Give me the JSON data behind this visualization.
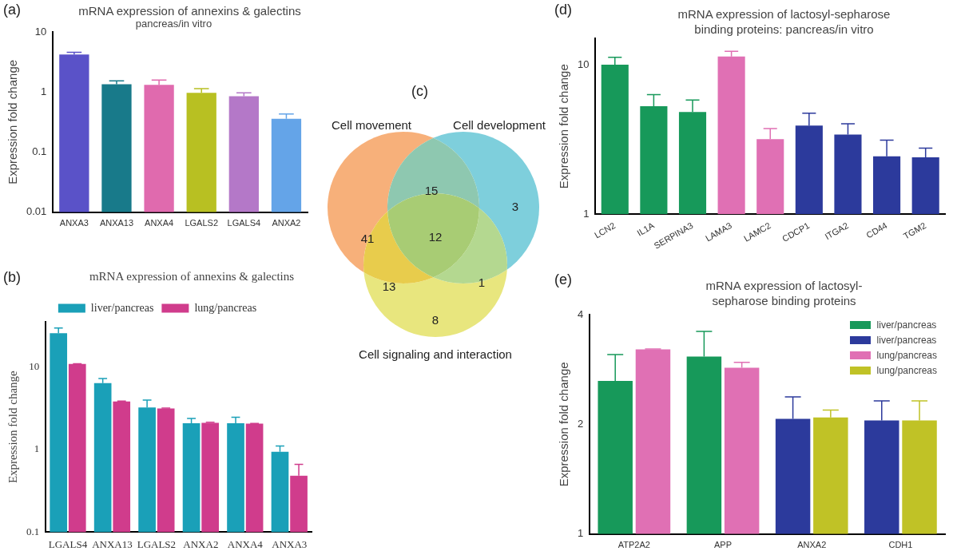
{
  "chart_data": [
    {
      "type": "bar",
      "title": "mRNA expression of annexins & galectins",
      "subtitle": "pancreas/in vitro",
      "annotations": [
        "(a)"
      ],
      "ylabel": "Expression fold change",
      "log": true,
      "ylim": [
        0.01,
        10
      ],
      "yticks": [
        0.01,
        0.1,
        1,
        10
      ],
      "grid": false,
      "legend": false,
      "categories": [
        "ANXA3",
        "ANXA13",
        "ANXA4",
        "LGALS2",
        "LGALS4",
        "ANXA2"
      ],
      "values": [
        4.2,
        1.35,
        1.32,
        0.97,
        0.85,
        0.36
      ],
      "errors": [
        [
          4.2,
          4.6
        ],
        [
          1.35,
          1.53
        ],
        [
          1.32,
          1.58
        ],
        [
          0.97,
          1.14
        ],
        [
          0.85,
          0.97
        ],
        [
          0.36,
          0.43
        ]
      ],
      "colors": [
        "#5a52c8",
        "#187a8a",
        "#e06aae",
        "#b8c022",
        "#b478c8",
        "#64a4e8"
      ]
    },
    {
      "type": "bar",
      "title": "mRNA expression of annexins & galectins",
      "annotations": [
        "(b)"
      ],
      "ylabel": "Expression fold change",
      "log": true,
      "ylim": [
        0.1,
        35
      ],
      "yticks": [
        0.1,
        1,
        10
      ],
      "grid": false,
      "legend": "top",
      "categories": [
        "LGALS4",
        "ANXA13",
        "LGALS2",
        "ANXA2",
        "ANXA4",
        "ANXA3"
      ],
      "series": [
        {
          "name": "liver/pancreas",
          "color": "#1aa0b8",
          "values": [
            25.5,
            6.35,
            3.22,
            2.08,
            2.08,
            0.94
          ],
          "errors": [
            [
              25.5,
              29.5
            ],
            [
              6.35,
              7.2
            ],
            [
              3.22,
              3.95
            ],
            [
              2.08,
              2.37
            ],
            [
              2.08,
              2.45
            ],
            [
              0.94,
              1.1
            ]
          ]
        },
        {
          "name": "lung/pancreas",
          "color": "#d03c8c",
          "values": [
            10.8,
            3.81,
            3.13,
            2.1,
            2.05,
            0.48
          ],
          "errors": [
            [
              10.8,
              10.9
            ],
            [
              3.81,
              3.85
            ],
            [
              3.13,
              3.17
            ],
            [
              2.1,
              2.13
            ],
            [
              2.05,
              2.07
            ],
            [
              0.48,
              0.66
            ]
          ]
        }
      ]
    },
    {
      "type": "other",
      "annotations": [
        "(c)",
        "Cell movement",
        "Cell development",
        "Cell signaling and interaction",
        "41",
        "3",
        "8",
        "15",
        "13",
        "1",
        "12"
      ],
      "colors": [
        "#f7b07a",
        "#7ecfdc",
        "#e8e67e",
        "#8ec8b0",
        "#e8cc4c",
        "#b4d890",
        "#a8cc74"
      ]
    },
    {
      "type": "bar",
      "title": "mRNA expression of lactosyl-sepharose binding proteins: pancreas/in vitro",
      "annotations": [
        "(d)"
      ],
      "ylabel": "Expression fold change",
      "log": true,
      "ylim": [
        1,
        15
      ],
      "yticks": [
        1,
        10
      ],
      "grid": false,
      "legend": false,
      "categories": [
        "LCN2",
        "IL1A",
        "SERPINA3",
        "LAMA3",
        "LAMC2",
        "CDCP1",
        "ITGA2",
        "CD44",
        "TGM2"
      ],
      "values": [
        10.0,
        5.28,
        4.83,
        11.35,
        3.18,
        3.92,
        3.41,
        2.44,
        2.4
      ],
      "errors": [
        [
          10.0,
          11.2
        ],
        [
          5.28,
          6.31
        ],
        [
          4.83,
          5.81
        ],
        [
          11.35,
          12.3
        ],
        [
          3.18,
          3.74
        ],
        [
          3.92,
          4.74
        ],
        [
          3.41,
          4.03
        ],
        [
          2.44,
          3.13
        ],
        [
          2.4,
          2.77
        ]
      ],
      "colors": [
        "#17995a",
        "#17995a",
        "#17995a",
        "#e070b4",
        "#e070b4",
        "#2c3a9c",
        "#2c3a9c",
        "#2c3a9c",
        "#2c3a9c"
      ]
    },
    {
      "type": "bar",
      "title": "mRNA expression of lactosyl-sepharose binding proteins",
      "annotations": [
        "(e)"
      ],
      "ylabel": "Expression fold change",
      "log": true,
      "ylim": [
        1,
        4
      ],
      "yticks": [
        1,
        2,
        4
      ],
      "grid": false,
      "legend": "top right",
      "categories": [
        "ATP2A2",
        "APP",
        "ANXA2",
        "CDH1"
      ],
      "series": [
        {
          "name": "liver/pancreas",
          "color": "#17995a",
          "values": [
            2.63,
            3.07,
            null,
            null
          ],
          "errors": [
            [
              2.63,
              3.11
            ],
            [
              3.07,
              3.6
            ],
            null,
            null
          ]
        },
        {
          "name": "liver/pancreas",
          "color": "#2c3a9c",
          "values": [
            null,
            null,
            2.07,
            2.05
          ],
          "errors": [
            null,
            null,
            [
              2.07,
              2.38
            ],
            [
              2.05,
              2.32
            ]
          ]
        },
        {
          "name": "lung/pancreas",
          "color": "#e070b4",
          "values": [
            3.21,
            2.86,
            null,
            null
          ],
          "errors": [
            [
              3.21,
              3.22
            ],
            [
              2.86,
              2.96
            ],
            null,
            null
          ]
        },
        {
          "name": "lung/pancreas",
          "color": "#c0c226",
          "values": [
            null,
            null,
            2.09,
            2.05
          ],
          "errors": [
            null,
            null,
            [
              2.09,
              2.19
            ],
            [
              2.05,
              2.32
            ]
          ]
        }
      ]
    }
  ]
}
